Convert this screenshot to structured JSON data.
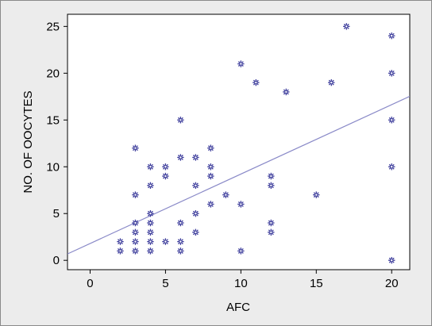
{
  "chart_data": {
    "type": "scatter",
    "title": "",
    "xlabel": "AFC",
    "ylabel": "NO. OF OOCYTES",
    "xlim": [
      -1.5,
      21.2
    ],
    "ylim": [
      -1.0,
      26.3
    ],
    "x_ticks": [
      0,
      5,
      10,
      15,
      20
    ],
    "y_ticks": [
      0,
      5,
      10,
      15,
      20,
      25
    ],
    "grid": false,
    "legend": "none",
    "colors": {
      "marker": "#3a3a9a",
      "fit_line": "#8a8ac8",
      "plot_background": "#ffffff",
      "frame_background": "#ececec"
    },
    "marker_shape": "asterisk",
    "series": [
      {
        "points": [
          [
            2,
            2
          ],
          [
            2,
            1
          ],
          [
            3,
            12
          ],
          [
            3,
            7
          ],
          [
            3,
            4
          ],
          [
            3,
            3
          ],
          [
            3,
            2
          ],
          [
            3,
            1
          ],
          [
            4,
            10
          ],
          [
            4,
            8
          ],
          [
            4,
            5
          ],
          [
            4,
            4
          ],
          [
            4,
            3
          ],
          [
            4,
            2
          ],
          [
            4,
            1
          ],
          [
            5,
            10
          ],
          [
            5,
            9
          ],
          [
            5,
            2
          ],
          [
            6,
            15
          ],
          [
            6,
            11
          ],
          [
            6,
            4
          ],
          [
            6,
            2
          ],
          [
            6,
            1
          ],
          [
            7,
            11
          ],
          [
            7,
            8
          ],
          [
            7,
            5
          ],
          [
            7,
            3
          ],
          [
            8,
            12
          ],
          [
            8,
            10
          ],
          [
            8,
            9
          ],
          [
            8,
            6
          ],
          [
            9,
            7
          ],
          [
            10,
            21
          ],
          [
            10,
            6
          ],
          [
            10,
            1
          ],
          [
            11,
            19
          ],
          [
            12,
            9
          ],
          [
            12,
            8
          ],
          [
            12,
            4
          ],
          [
            12,
            3
          ],
          [
            13,
            18
          ],
          [
            15,
            7
          ],
          [
            16,
            19
          ],
          [
            17,
            25
          ],
          [
            20,
            24
          ],
          [
            20,
            20
          ],
          [
            20,
            15
          ],
          [
            20,
            10
          ],
          [
            20,
            0
          ]
        ]
      }
    ],
    "fit_line": {
      "intercept": 1.8,
      "slope": 0.742
    }
  }
}
